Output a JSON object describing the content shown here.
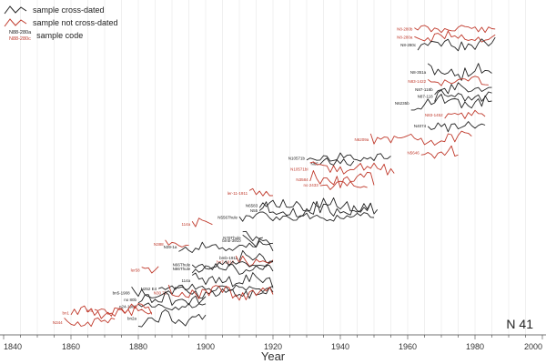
{
  "legend": {
    "items": [
      {
        "label": "sample cross-dated",
        "color": "#222222"
      },
      {
        "label": "sample not cross-dated",
        "color": "#c0392b"
      },
      {
        "label": "sample code",
        "color": "#222222"
      }
    ],
    "code_examples": [
      "N88-280a",
      "N88-280c"
    ]
  },
  "panel_label": "N 41",
  "chart_data": {
    "type": "line",
    "title": "",
    "xlabel": "Year",
    "ylabel": "",
    "xlim": [
      1840,
      2000
    ],
    "xticks": [
      1840,
      1860,
      1880,
      1900,
      1920,
      1940,
      1960,
      1980,
      2000
    ],
    "grid": "vertical",
    "colors": {
      "crossdated": "#222222",
      "not_crossdated": "#c0392b"
    },
    "note": "Stacked tree-ring width series; level is an arbitrary stacking offset (0 = bottom). Values approximate.",
    "series": [
      {
        "name": "N8-280b",
        "crossdated": false,
        "start": 1962,
        "end": 1986,
        "level": 22.2
      },
      {
        "name": "N8-280a",
        "crossdated": false,
        "start": 1962,
        "end": 1986,
        "level": 21.6
      },
      {
        "name": "N8-280c",
        "crossdated": true,
        "start": 1963,
        "end": 1986,
        "level": 21.0
      },
      {
        "name": "N8-351a",
        "crossdated": true,
        "start": 1966,
        "end": 1985,
        "level": 19.0
      },
      {
        "name": "N83-1422",
        "crossdated": false,
        "start": 1966,
        "end": 1984,
        "level": 18.3
      },
      {
        "name": "N87-118b",
        "crossdated": true,
        "start": 1968,
        "end": 1985,
        "level": 17.7
      },
      {
        "name": "N87-118",
        "crossdated": true,
        "start": 1968,
        "end": 1985,
        "level": 17.2
      },
      {
        "name": "N6235b",
        "crossdated": true,
        "start": 1961,
        "end": 1985,
        "level": 16.7
      },
      {
        "name": "N83-1452",
        "crossdated": false,
        "start": 1971,
        "end": 1983,
        "level": 15.8
      },
      {
        "name": "N4074",
        "crossdated": true,
        "start": 1966,
        "end": 1983,
        "level": 15.0
      },
      {
        "name": "N6209a",
        "crossdated": false,
        "start": 1949,
        "end": 1979,
        "level": 14.0
      },
      {
        "name": "N5646",
        "crossdated": false,
        "start": 1964,
        "end": 1975,
        "level": 13.0
      },
      {
        "name": "N10571b",
        "crossdated": true,
        "start": 1930,
        "end": 1955,
        "level": 12.6
      },
      {
        "name": "N65",
        "crossdated": true,
        "start": 1934,
        "end": 1944,
        "level": 12.2
      },
      {
        "name": "N10571bI",
        "crossdated": false,
        "start": 1931,
        "end": 1956,
        "level": 11.8
      },
      {
        "name": "N3584",
        "crossdated": false,
        "start": 1931,
        "end": 1950,
        "level": 11.0
      },
      {
        "name": "no 2433",
        "crossdated": false,
        "start": 1934,
        "end": 1948,
        "level": 10.6
      },
      {
        "name": "ler-11-1911",
        "crossdated": false,
        "start": 1913,
        "end": 1920,
        "level": 10.0
      },
      {
        "name": "N6583",
        "crossdated": true,
        "start": 1916,
        "end": 1949,
        "level": 9.1
      },
      {
        "name": "N55",
        "crossdated": true,
        "start": 1916,
        "end": 1951,
        "level": 8.7
      },
      {
        "name": "N5567hule",
        "crossdated": true,
        "start": 1910,
        "end": 1950,
        "level": 8.2
      },
      {
        "name": "114a",
        "crossdated": false,
        "start": 1896,
        "end": 1902,
        "level": 7.7
      },
      {
        "name": "N70Thule",
        "crossdated": true,
        "start": 1911,
        "end": 1920,
        "level": 6.7
      },
      {
        "name": "bmb-3910",
        "crossdated": true,
        "start": 1911,
        "end": 1917,
        "level": 6.5
      },
      {
        "name": "N388",
        "crossdated": false,
        "start": 1888,
        "end": 1895,
        "level": 6.2
      },
      {
        "name": "N39-1a",
        "crossdated": true,
        "start": 1892,
        "end": 1920,
        "level": 6.0
      },
      {
        "name": "bmb-1911",
        "crossdated": true,
        "start": 1910,
        "end": 1920,
        "level": 5.2
      },
      {
        "name": "bn7-1919",
        "crossdated": false,
        "start": 1909,
        "end": 1920,
        "level": 4.9
      },
      {
        "name": "N66Thule",
        "crossdated": true,
        "start": 1896,
        "end": 1920,
        "level": 4.7
      },
      {
        "name": "N86Thule",
        "crossdated": true,
        "start": 1896,
        "end": 1920,
        "level": 4.4
      },
      {
        "name": "ler58",
        "crossdated": false,
        "start": 1881,
        "end": 1886,
        "level": 4.3
      },
      {
        "name": "114a",
        "crossdated": true,
        "start": 1896,
        "end": 1920,
        "level": 3.5
      },
      {
        "name": "N252 E4",
        "crossdated": true,
        "start": 1886,
        "end": 1920,
        "level": 2.9
      },
      {
        "name": "bn5-1908",
        "crossdated": true,
        "start": 1878,
        "end": 1920,
        "level": 2.6
      },
      {
        "name": "N30 72",
        "crossdated": false,
        "start": 1889,
        "end": 1920,
        "level": 2.6
      },
      {
        "name": "no 80b",
        "crossdated": true,
        "start": 1880,
        "end": 1900,
        "level": 2.1
      },
      {
        "name": "n24-1909",
        "crossdated": true,
        "start": 1880,
        "end": 1900,
        "level": 1.6
      },
      {
        "name": "hml",
        "crossdated": false,
        "start": 1867,
        "end": 1884,
        "level": 1.3
      },
      {
        "name": "bn1",
        "crossdated": false,
        "start": 1860,
        "end": 1884,
        "level": 1.1
      },
      {
        "name": "bn2a",
        "crossdated": true,
        "start": 1880,
        "end": 1900,
        "level": 0.7
      },
      {
        "name": "N344",
        "crossdated": false,
        "start": 1858,
        "end": 1873,
        "level": 0.4
      }
    ]
  }
}
